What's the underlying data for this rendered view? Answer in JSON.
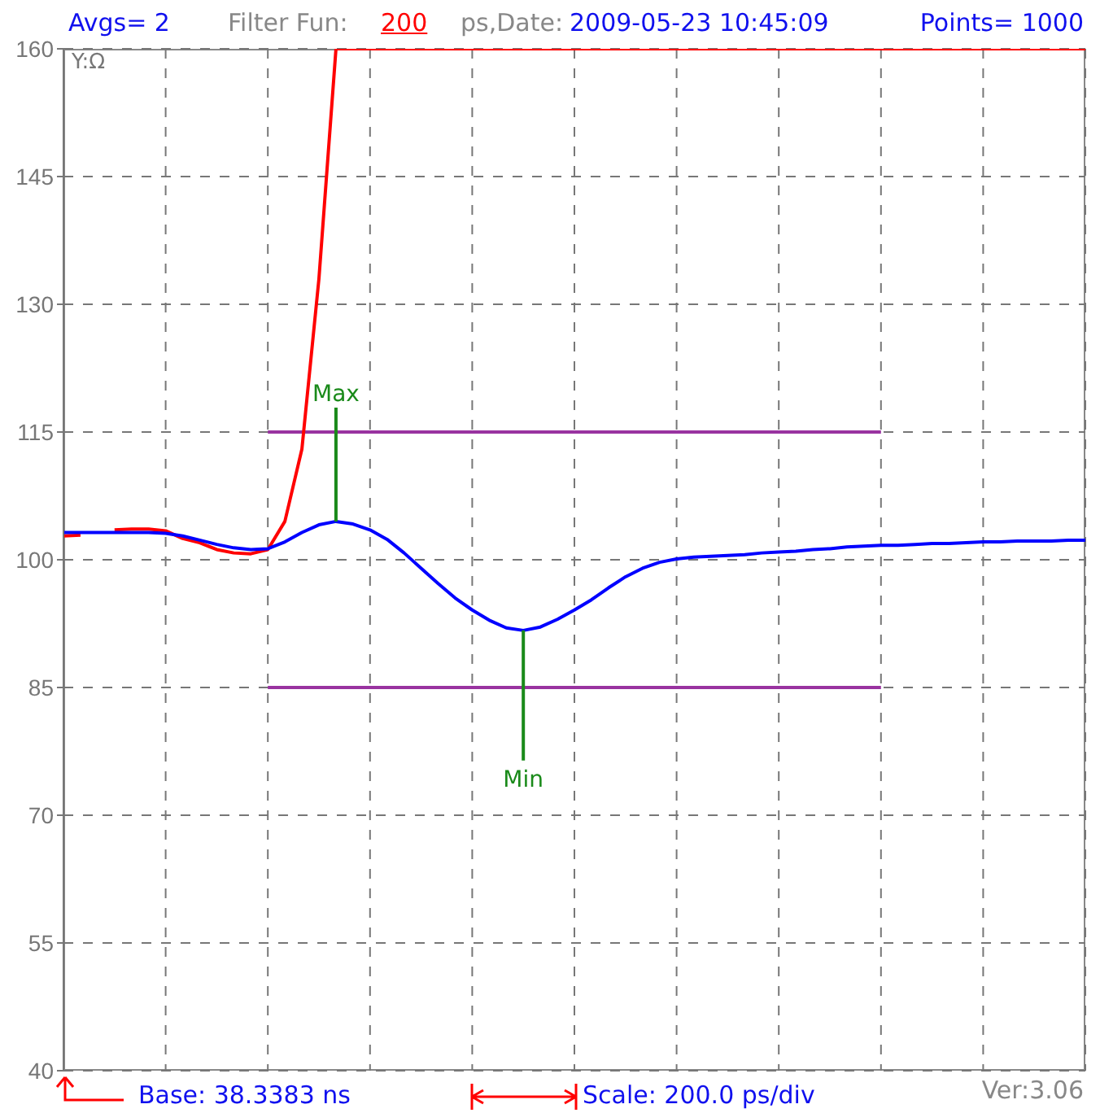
{
  "chart_data": {
    "type": "line",
    "categories": [
      null,
      null,
      null,
      null,
      null,
      null,
      null,
      null,
      null,
      null,
      null,
      null,
      null,
      null,
      null,
      null,
      null,
      null,
      null,
      null,
      null,
      null,
      null,
      null,
      null,
      null,
      null,
      null,
      null,
      null,
      null,
      null,
      null,
      null,
      null,
      null,
      null,
      null,
      null,
      null,
      null,
      null,
      null,
      null,
      null,
      null,
      null,
      null,
      null,
      null,
      null,
      null,
      null,
      null,
      null,
      null,
      null,
      null,
      null,
      null,
      null
    ],
    "series": [
      {
        "color": "#9933a0",
        "values": [
          null,
          null,
          null,
          null,
          null,
          null,
          null,
          null,
          null,
          null,
          null,
          null,
          115,
          115,
          115,
          115,
          115,
          115,
          115,
          115,
          115,
          115,
          115,
          115,
          115,
          115,
          115,
          115,
          115,
          115,
          115,
          115,
          115,
          115,
          115,
          115,
          115,
          115,
          115,
          115,
          115,
          115,
          115,
          115,
          115,
          115,
          115,
          115,
          115,
          null,
          null,
          null,
          null,
          null,
          null,
          null,
          null,
          null,
          null,
          null,
          null
        ]
      },
      {
        "color": "#9933a0",
        "values": [
          null,
          null,
          null,
          null,
          null,
          null,
          null,
          null,
          null,
          null,
          null,
          null,
          85,
          85,
          85,
          85,
          85,
          85,
          85,
          85,
          85,
          85,
          85,
          85,
          85,
          85,
          85,
          85,
          85,
          85,
          85,
          85,
          85,
          85,
          85,
          85,
          85,
          85,
          85,
          85,
          85,
          85,
          85,
          85,
          85,
          85,
          85,
          85,
          85,
          null,
          null,
          null,
          null,
          null,
          null,
          null,
          null,
          null,
          null,
          null,
          null
        ]
      },
      {
        "color": "#ff0000",
        "values": [
          102.8,
          102.9,
          null,
          103.5,
          103.6,
          103.6,
          103.4,
          102.5,
          102.0,
          101.2,
          100.8,
          100.7,
          101.2,
          104.5,
          113,
          133,
          160,
          160,
          160,
          160,
          160,
          160,
          160,
          160,
          160,
          160,
          160,
          160,
          160,
          160,
          160,
          160,
          160,
          160,
          160,
          160,
          160,
          160,
          160,
          160,
          160,
          160,
          160,
          160,
          160,
          160,
          160,
          160,
          160,
          160,
          160,
          160,
          160,
          160,
          160,
          160,
          160,
          160,
          160,
          160,
          160
        ]
      },
      {
        "color": "#0000ff",
        "values": [
          103.2,
          103.2,
          103.2,
          103.2,
          103.2,
          103.2,
          103.1,
          102.8,
          102.3,
          101.8,
          101.4,
          101.2,
          101.3,
          102.1,
          103.2,
          104.1,
          104.5,
          104.2,
          103.5,
          102.4,
          100.8,
          99.0,
          97.2,
          95.5,
          94.1,
          92.9,
          92.0,
          91.7,
          92.1,
          93.0,
          94.1,
          95.3,
          96.7,
          98.0,
          99.0,
          99.7,
          100.1,
          100.3,
          100.4,
          100.5,
          100.6,
          100.8,
          100.9,
          101.0,
          101.2,
          101.3,
          101.5,
          101.6,
          101.7,
          101.7,
          101.8,
          101.9,
          101.9,
          102.0,
          102.1,
          102.1,
          102.2,
          102.2,
          102.2,
          102.3,
          102.3
        ]
      }
    ],
    "ylim": [
      40,
      160
    ],
    "yticks": [
      40,
      55,
      70,
      85,
      100,
      115,
      130,
      145,
      160
    ],
    "grid": true,
    "tick_labels": "y",
    "marker": "none",
    "line_style": "solid",
    "annotations": [
      "Y:Ω",
      "Avgs= 2",
      "Filter Fun:",
      "200",
      "ps,Date:",
      "2009-05-23 10:45:09",
      "Points= 1000",
      "Base: 38.3383 ns",
      "Scale: 200.0 ps/div",
      "Ver:3.06",
      {
        "text": "Max",
        "y": 104.5
      },
      {
        "text": "Min",
        "y": 91.7
      }
    ]
  }
}
